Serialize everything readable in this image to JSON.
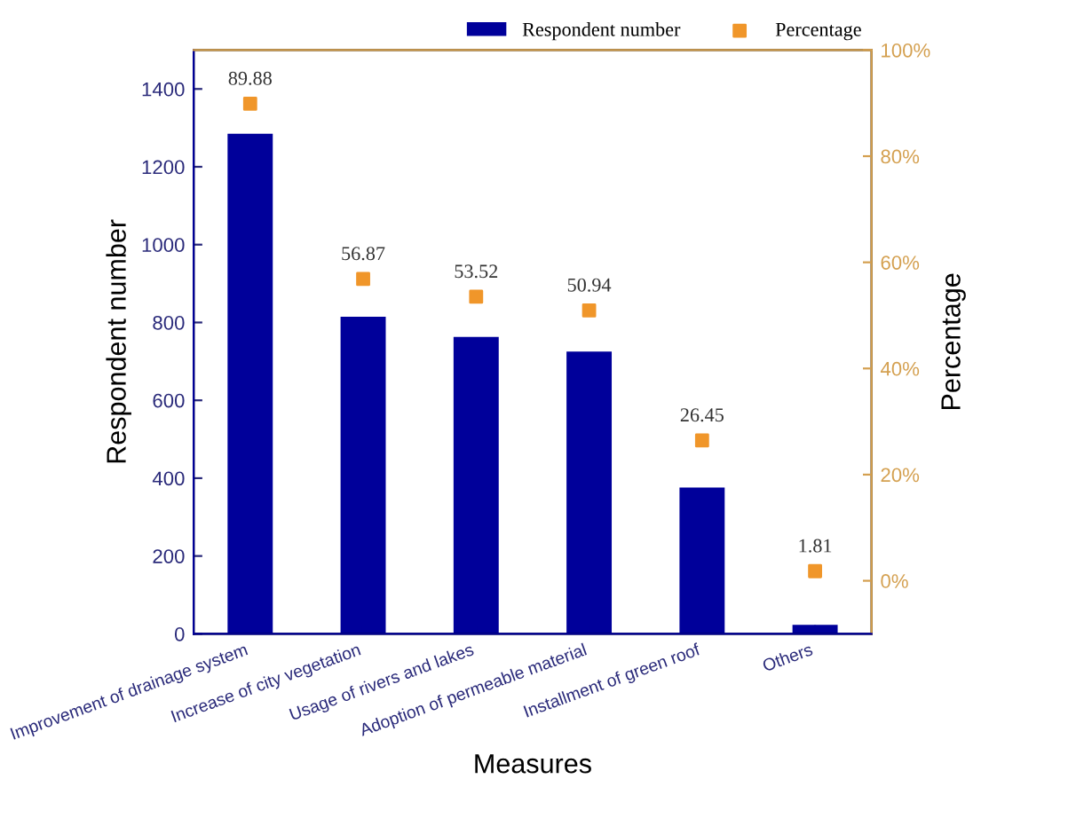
{
  "chart_data": {
    "type": "bar",
    "xlabel": "Measures",
    "ylabel": "Respondent number",
    "y2label": "Percentage",
    "categories": [
      "Improvement of drainage system",
      "Increase of city vegetation",
      "Usage of rivers and lakes",
      "Adoption of permeable material",
      "Installment of green roof",
      "Others"
    ],
    "series": [
      {
        "name": "Respondent number",
        "color": "#00009a",
        "values": [
          1285,
          815,
          763,
          725,
          376,
          23
        ]
      },
      {
        "name": "Percentage",
        "type": "scatter",
        "axis": "y2",
        "color": "#f0962a",
        "marker": "square",
        "values": [
          89.88,
          56.87,
          53.52,
          50.94,
          26.45,
          1.81
        ],
        "data_labels": true
      }
    ],
    "ylim": [
      0,
      1500
    ],
    "yticks": [
      0,
      200,
      400,
      600,
      800,
      1000,
      1200,
      1400
    ],
    "y2lim": [
      -10,
      100
    ],
    "y2ticks": [
      {
        "value": 0,
        "label": "0%"
      },
      {
        "value": 20,
        "label": "20%"
      },
      {
        "value": 40,
        "label": "40%"
      },
      {
        "value": 60,
        "label": "60%"
      },
      {
        "value": 80,
        "label": "80%"
      },
      {
        "value": 100,
        "label": "100%"
      }
    ],
    "legend": "top right",
    "grid": false
  }
}
